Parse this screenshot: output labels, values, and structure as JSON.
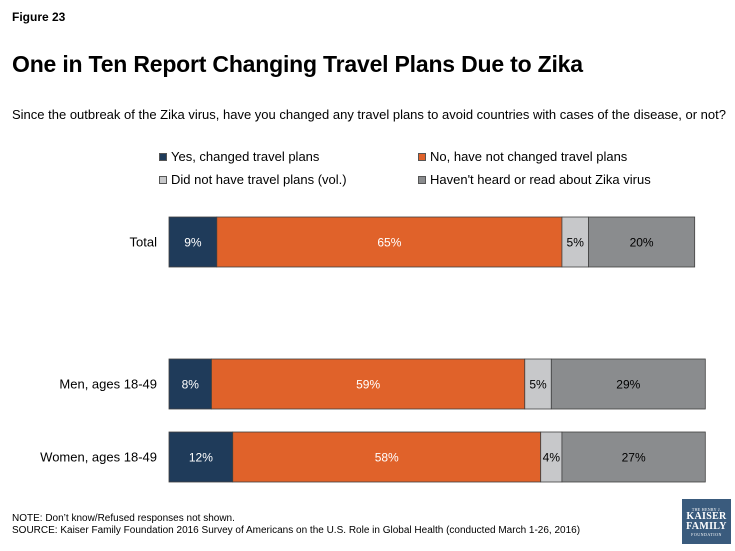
{
  "figure_label": "Figure 23",
  "logo": {
    "line1": "THE HENRY J.",
    "line2": "KAISER",
    "line3": "FAMILY",
    "line4": "FOUNDATION"
  },
  "note": "NOTE: Don’t know/Refused responses not shown.",
  "source": "SOURCE: Kaiser Family Foundation 2016 Survey of Americans on the U.S. Role in Global Health (conducted March 1-26, 2016)",
  "chart_data": {
    "type": "bar",
    "orientation": "horizontal-stacked",
    "title": "One in Ten Report Changing Travel Plans Due to Zika",
    "subtitle": "Since the outbreak of the Zika virus, have you changed any travel plans to avoid countries with cases of the disease, or not?",
    "categories": [
      "Total",
      "Men, ages 18-49",
      "Women, ages 18-49"
    ],
    "series": [
      {
        "name": "Yes, changed travel plans",
        "color": "#1f3b5a",
        "label_color": "#ffffff",
        "values": [
          9,
          8,
          12
        ]
      },
      {
        "name": "No, have not changed travel plans",
        "color": "#e0622a",
        "label_color": "#ffffff",
        "values": [
          65,
          59,
          58
        ]
      },
      {
        "name": "Did not have travel plans (vol.)",
        "color": "#c7c8ca",
        "label_color": "#000000",
        "values": [
          5,
          5,
          4
        ]
      },
      {
        "name": "Haven't heard or read about Zika virus",
        "color": "#8a8c8e",
        "label_color": "#000000",
        "values": [
          20,
          29,
          27
        ]
      }
    ],
    "xlim": [
      0,
      100
    ],
    "legend_position": "top"
  }
}
